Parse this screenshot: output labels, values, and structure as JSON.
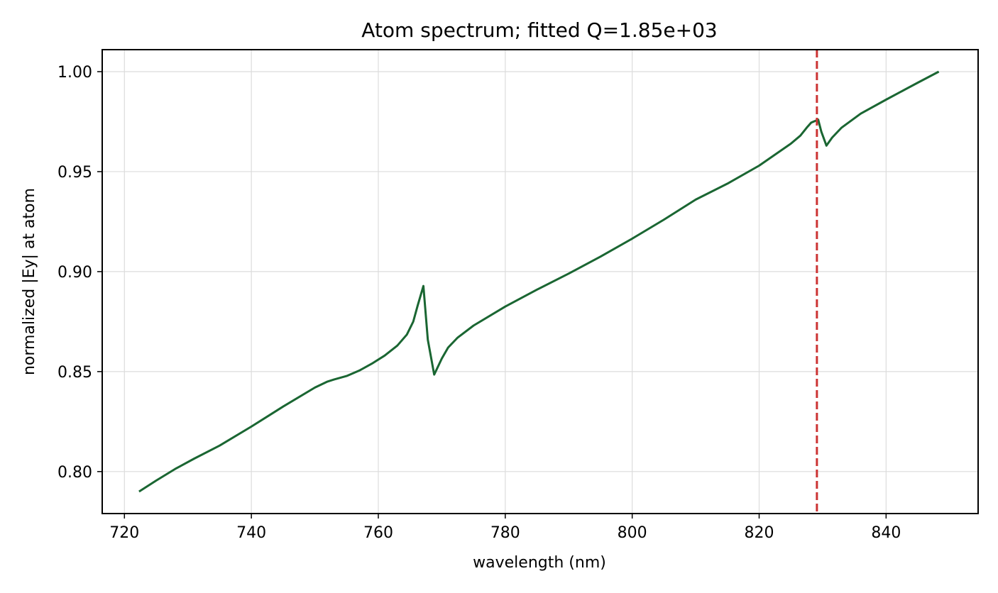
{
  "chart_data": {
    "type": "line",
    "title": "Atom spectrum; fitted Q=1.85e+03",
    "xlabel": "wavelength (nm)",
    "ylabel": "normalized |Ey| at atom",
    "xlim": [
      716.5,
      854.5
    ],
    "ylim": [
      0.779,
      1.011
    ],
    "xticks": [
      720,
      740,
      760,
      780,
      800,
      820,
      840
    ],
    "xtick_labels": [
      "720",
      "740",
      "760",
      "780",
      "800",
      "820",
      "840"
    ],
    "yticks": [
      0.8,
      0.85,
      0.9,
      0.95,
      1.0
    ],
    "ytick_labels": [
      "0.80",
      "0.85",
      "0.90",
      "0.95",
      "1.00"
    ],
    "grid": true,
    "series": [
      {
        "color": "#1a6632",
        "x": [
          722.3,
          725,
          728,
          731,
          735,
          740,
          745,
          750,
          752,
          753,
          755,
          757,
          759,
          761,
          763,
          764.5,
          765.5,
          766.2,
          767.1,
          767.8,
          768.8,
          770,
          771,
          772.5,
          775,
          780,
          785,
          790,
          795,
          800,
          805,
          810,
          815,
          820,
          825,
          826.5,
          827.5,
          828.2,
          829.3,
          829.8,
          830.6,
          831.5,
          833,
          836,
          840,
          845,
          848.3
        ],
        "y": [
          0.79,
          0.7955,
          0.8013,
          0.8065,
          0.813,
          0.8225,
          0.8325,
          0.842,
          0.845,
          0.846,
          0.8478,
          0.8505,
          0.854,
          0.858,
          0.863,
          0.8685,
          0.875,
          0.883,
          0.8928,
          0.866,
          0.8485,
          0.8565,
          0.862,
          0.867,
          0.873,
          0.8825,
          0.891,
          0.899,
          0.9075,
          0.9165,
          0.926,
          0.936,
          0.944,
          0.953,
          0.964,
          0.968,
          0.972,
          0.9745,
          0.976,
          0.97,
          0.963,
          0.967,
          0.972,
          0.979,
          0.986,
          0.9945,
          1.0
        ]
      }
    ],
    "vlines": [
      {
        "x": 829.1,
        "color": "#cc3333",
        "style": "dashed"
      }
    ]
  }
}
